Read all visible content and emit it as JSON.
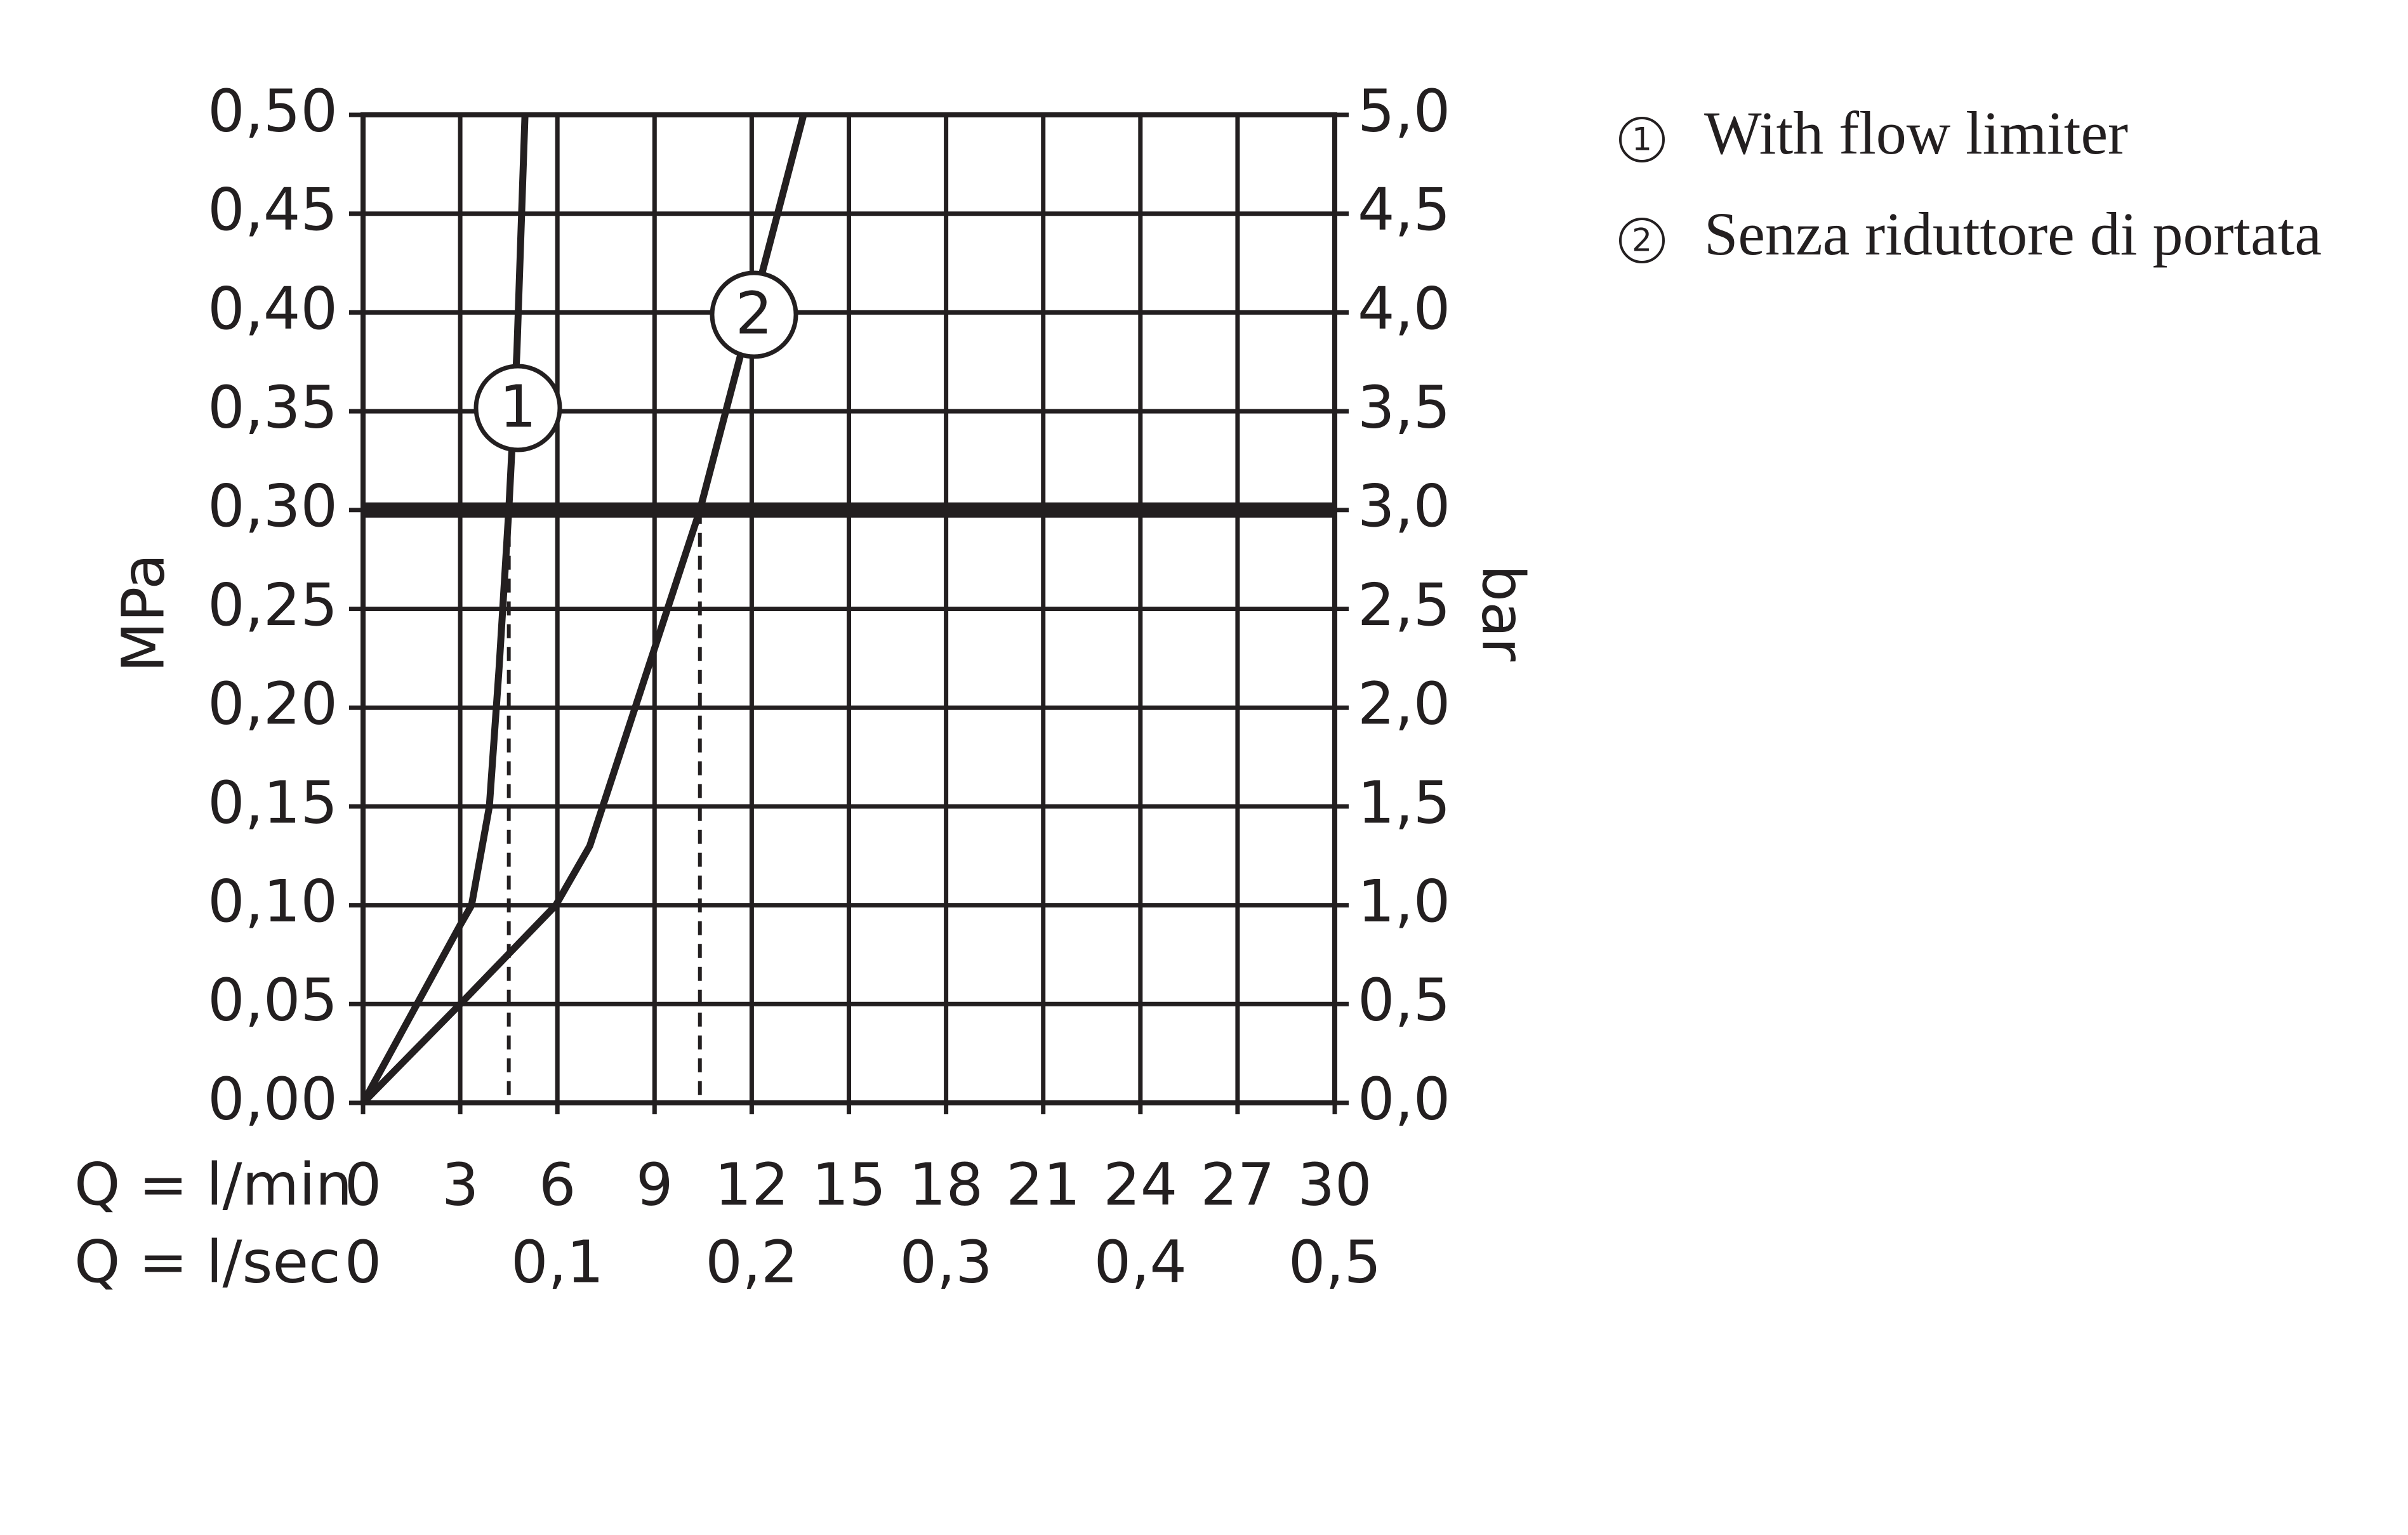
{
  "chart_data": {
    "type": "line",
    "x_label": "Q = l/min",
    "x2_label": "Q = l/sec",
    "y_label": "MPa",
    "y2_label": "bar",
    "xlim": [
      0,
      30
    ],
    "xticks": [
      0,
      3,
      6,
      9,
      12,
      15,
      18,
      21,
      24,
      27,
      30
    ],
    "x2lim": [
      0,
      0.5
    ],
    "x2ticks": [
      0,
      {
        "value": 0.1,
        "label": "0,1"
      },
      {
        "value": 0.2,
        "label": "0,2"
      },
      {
        "value": 0.3,
        "label": "0,3"
      },
      {
        "value": 0.4,
        "label": "0,4"
      },
      {
        "value": 0.5,
        "label": "0,5"
      }
    ],
    "ylim": [
      0,
      0.5
    ],
    "yticks": [
      {
        "value": 0,
        "label": "0,00"
      },
      {
        "value": 0.05,
        "label": "0,05"
      },
      {
        "value": 0.1,
        "label": "0,10"
      },
      {
        "value": 0.15,
        "label": "0,15"
      },
      {
        "value": 0.2,
        "label": "0,20"
      },
      {
        "value": 0.25,
        "label": "0,25"
      },
      {
        "value": 0.3,
        "label": "0,30"
      },
      {
        "value": 0.35,
        "label": "0,35"
      },
      {
        "value": 0.4,
        "label": "0,40"
      },
      {
        "value": 0.45,
        "label": "0,45"
      },
      {
        "value": 0.5,
        "label": "0,50"
      }
    ],
    "y2lim": [
      0,
      5
    ],
    "y2ticks": [
      {
        "value": 0,
        "label": "0,0"
      },
      {
        "value": 0.5,
        "label": "0,5"
      },
      {
        "value": 1,
        "label": "1,0"
      },
      {
        "value": 1.5,
        "label": "1,5"
      },
      {
        "value": 2,
        "label": "2,0"
      },
      {
        "value": 2.5,
        "label": "2,5"
      },
      {
        "value": 3,
        "label": "3,0"
      },
      {
        "value": 3.5,
        "label": "3,5"
      },
      {
        "value": 4,
        "label": "4,0"
      },
      {
        "value": 4.5,
        "label": "4,5"
      },
      {
        "value": 5,
        "label": "5,0"
      }
    ],
    "grid": true,
    "reference_line": 0.3,
    "drop_lines": [
      {
        "x": 4.5,
        "y": 0.3
      },
      {
        "x": 10.4,
        "y": 0.3
      }
    ],
    "series": [
      {
        "name": "With flow limiter",
        "label": "1",
        "color": "#231f20",
        "x": [
          0,
          1.5,
          3,
          3.35,
          3.9,
          4.2,
          4.5,
          4.75,
          5.0
        ],
        "values": [
          0,
          0.045,
          0.09,
          0.1,
          0.15,
          0.22,
          0.3,
          0.38,
          0.5
        ]
      },
      {
        "name": "Senza riduttore di portata",
        "label": "2",
        "color": "#231f20",
        "x": [
          0,
          3,
          5.95,
          7,
          8,
          9,
          10.4,
          12,
          13.6
        ],
        "values": [
          0,
          0.05,
          0.1,
          0.13,
          0.18,
          0.23,
          0.3,
          0.4,
          0.5
        ]
      }
    ]
  }
}
